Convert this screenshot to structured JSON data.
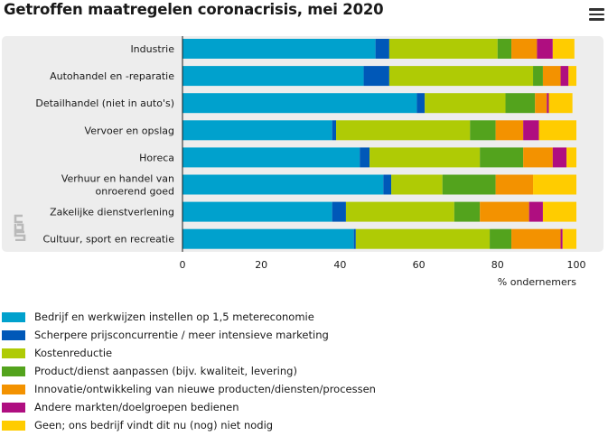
{
  "header": {
    "title": "Getroffen maatregelen coronacrisis, mei 2020"
  },
  "colors": {
    "panel_bg": "#ededed",
    "series": [
      "#00a1cd",
      "#0058b8",
      "#afcb05",
      "#53a31d",
      "#f39200",
      "#af0e80",
      "#ffcc00"
    ]
  },
  "chart_data": {
    "type": "bar",
    "orientation": "horizontal",
    "stacked": true,
    "title": "Getroffen maatregelen coronacrisis, mei 2020",
    "xlabel": "% ondernemers",
    "xlim": [
      0,
      100
    ],
    "xticks": [
      0,
      20,
      40,
      60,
      80,
      100
    ],
    "categories": [
      "Industrie",
      "Autohandel en -reparatie",
      "Detailhandel (niet in auto's)",
      "Vervoer en opslag",
      "Horeca",
      "Verhuur en handel van onroerend goed",
      "Zakelijke dienstverlening",
      "Cultuur, sport en recreatie"
    ],
    "category_lines": [
      [
        "Industrie"
      ],
      [
        "Autohandel en -reparatie"
      ],
      [
        "Detailhandel (niet in auto's)"
      ],
      [
        "Vervoer en opslag"
      ],
      [
        "Horeca"
      ],
      [
        "Verhuur en handel van",
        "onroerend goed"
      ],
      [
        "Zakelijke dienstverlening"
      ],
      [
        "Cultuur, sport en recreatie"
      ]
    ],
    "series": [
      {
        "name": "Bedrijf en werkwijzen instellen op 1,5 metereconomie",
        "values": [
          49,
          46,
          59.5,
          38,
          45,
          51,
          38,
          43.5
        ]
      },
      {
        "name": "Scherpere prijsconcurrentie / meer intensieve marketing",
        "values": [
          3.5,
          6.5,
          2,
          1,
          2.5,
          2,
          3.5,
          0.5
        ]
      },
      {
        "name": "Kostenreductie",
        "values": [
          27.5,
          36.5,
          20.5,
          34,
          28,
          13,
          27.5,
          34
        ]
      },
      {
        "name": "Product/dienst aanpassen (bijv. kwaliteit, levering)",
        "values": [
          3.5,
          2.5,
          7.5,
          6.5,
          11,
          13.5,
          6.5,
          5.5
        ]
      },
      {
        "name": "Innovatie/ontwikkeling van nieuwe producten/diensten/processen",
        "values": [
          6.5,
          4.5,
          3,
          7,
          7.5,
          9.5,
          12.5,
          12.5
        ]
      },
      {
        "name": "Andere markten/doelgroepen bedienen",
        "values": [
          4,
          2,
          0.5,
          4,
          3.5,
          0,
          3.5,
          0.5
        ]
      },
      {
        "name": "Geen; ons bedrijf vindt dit nu (nog) niet nodig",
        "values": [
          5.5,
          2,
          6,
          9.5,
          2.5,
          11,
          8.5,
          3.5
        ]
      }
    ]
  }
}
